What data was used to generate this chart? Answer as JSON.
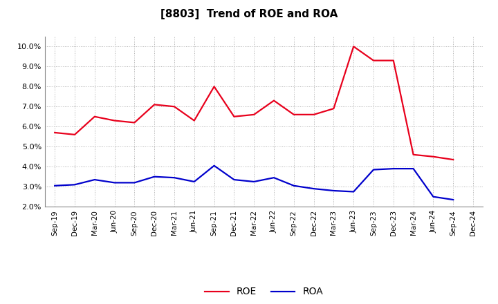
{
  "title": "[8803]  Trend of ROE and ROA",
  "x_labels": [
    "Sep-19",
    "Dec-19",
    "Mar-20",
    "Jun-20",
    "Sep-20",
    "Dec-20",
    "Mar-21",
    "Jun-21",
    "Sep-21",
    "Dec-21",
    "Mar-22",
    "Jun-22",
    "Sep-22",
    "Dec-22",
    "Mar-23",
    "Jun-23",
    "Sep-23",
    "Dec-23",
    "Mar-24",
    "Jun-24",
    "Sep-24",
    "Dec-24"
  ],
  "roe": [
    5.7,
    5.6,
    6.5,
    6.3,
    6.2,
    7.1,
    7.0,
    6.3,
    8.0,
    6.5,
    6.6,
    7.3,
    6.6,
    6.6,
    6.9,
    10.0,
    9.3,
    9.3,
    4.6,
    4.5,
    4.35,
    null
  ],
  "roa": [
    3.05,
    3.1,
    3.35,
    3.2,
    3.2,
    3.5,
    3.45,
    3.25,
    4.05,
    3.35,
    3.25,
    3.45,
    3.05,
    2.9,
    2.8,
    2.75,
    3.85,
    3.9,
    3.9,
    2.5,
    2.35,
    null
  ],
  "roe_color": "#e8001c",
  "roa_color": "#0000cc",
  "background_color": "#ffffff",
  "grid_color": "#b0b0b0",
  "ylim": [
    2.0,
    10.5
  ],
  "yticks": [
    2.0,
    3.0,
    4.0,
    5.0,
    6.0,
    7.0,
    8.0,
    9.0,
    10.0
  ],
  "legend_roe": "ROE",
  "legend_roa": "ROA",
  "title_fontsize": 11
}
